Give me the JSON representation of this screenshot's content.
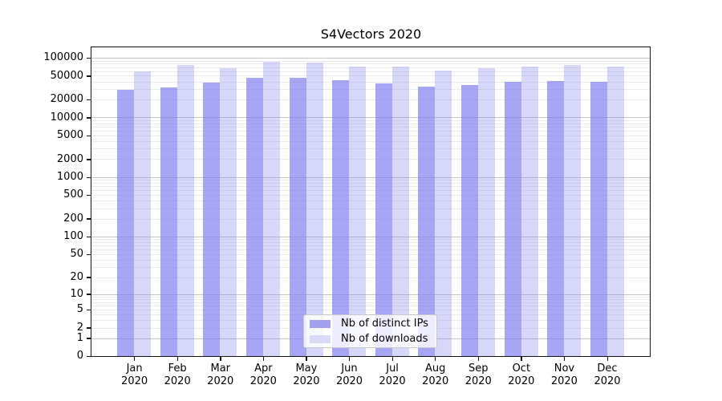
{
  "chart_data": {
    "type": "bar",
    "title": "S4Vectors 2020",
    "categories": [
      "Jan",
      "Feb",
      "Mar",
      "Apr",
      "May",
      "Jun",
      "Jul",
      "Aug",
      "Sep",
      "Oct",
      "Nov",
      "Dec"
    ],
    "year_label": "2020",
    "series": [
      {
        "name": "Nb of distinct IPs",
        "bar_color": "rgba(124,124,240,0.68)",
        "legend_color": "#a1a1f0",
        "values": [
          28800,
          32200,
          38500,
          46400,
          45900,
          41900,
          37700,
          33000,
          34700,
          39300,
          40400,
          40000
        ]
      },
      {
        "name": "Nb of downloads",
        "bar_color": "rgba(124,124,240,0.30)",
        "legend_color": "#d9d9f8",
        "values": [
          59500,
          76400,
          67300,
          85500,
          83700,
          72300,
          71600,
          61400,
          66700,
          72300,
          77100,
          71000
        ]
      }
    ],
    "yscale": "log1p",
    "ylim": [
      0,
      150000
    ],
    "yticks": [
      0,
      1,
      2,
      5,
      10,
      20,
      50,
      100,
      200,
      500,
      1000,
      2000,
      5000,
      10000,
      20000,
      50000,
      100000
    ],
    "grid": {
      "orientation": "horizontal",
      "major_lines": [
        1,
        10,
        100,
        1000,
        10000,
        100000
      ],
      "major_color": "#c6c6c6",
      "minor_color": "#ececec"
    },
    "legend_position": "lower center"
  }
}
